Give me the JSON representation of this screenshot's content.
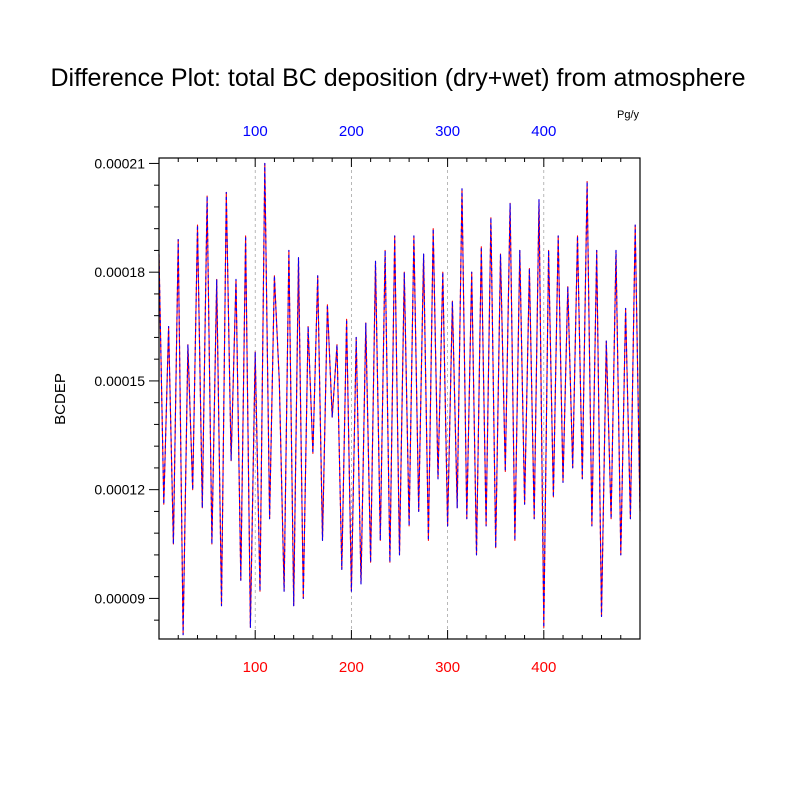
{
  "chart_data": {
    "type": "line",
    "title": "Difference Plot: total BC deposition (dry+wet) from atmosphere",
    "ylabel": "BCDEP",
    "units": "Pg/y",
    "xlim": [
      0,
      500
    ],
    "ylim": [
      7.88e-05,
      0.0002115
    ],
    "grid": "vertical dashed at top-axis ticks",
    "bottom_axis": {
      "ticks": [
        100,
        200,
        300,
        400
      ],
      "labels": [
        "100",
        "200",
        "300",
        "400"
      ],
      "color": "#ff0000"
    },
    "top_axis": {
      "ticks": [
        100,
        200,
        300,
        400
      ],
      "labels": [
        "100",
        "200",
        "300",
        "400"
      ],
      "color": "#0000ff"
    },
    "y_axis": {
      "ticks": [
        9e-05,
        0.00012,
        0.00015,
        0.00018,
        0.00021
      ],
      "labels": [
        "0.00009",
        "0.00012",
        "0.00015",
        "0.00018",
        "0.00021"
      ]
    },
    "series": [
      {
        "color": "#ff0000",
        "style": "solid",
        "x": [
          0,
          5,
          10,
          15,
          20,
          25,
          30,
          35,
          40,
          45,
          50,
          55,
          60,
          65,
          70,
          75,
          80,
          85,
          90,
          95,
          100,
          105,
          110,
          115,
          120,
          125,
          130,
          135,
          140,
          145,
          150,
          155,
          160,
          165,
          170,
          175,
          180,
          185,
          190,
          195,
          200,
          205,
          210,
          215,
          220,
          225,
          230,
          235,
          240,
          245,
          250,
          255,
          260,
          265,
          270,
          275,
          280,
          285,
          290,
          295,
          300,
          305,
          310,
          315,
          320,
          325,
          330,
          335,
          340,
          345,
          350,
          355,
          360,
          365,
          370,
          375,
          380,
          385,
          390,
          395,
          400,
          405,
          410,
          415,
          420,
          425,
          430,
          435,
          440,
          445,
          450,
          455,
          460,
          465,
          470,
          475,
          480,
          485,
          490,
          495,
          500
        ],
        "values": [
          0.000185,
          0.000116,
          0.000165,
          0.000105,
          0.000189,
          8e-05,
          0.00016,
          0.00012,
          0.000193,
          0.000115,
          0.000201,
          0.000105,
          0.000178,
          8.8e-05,
          0.000202,
          0.000128,
          0.000178,
          9.5e-05,
          0.00019,
          8.2e-05,
          0.000158,
          9.2e-05,
          0.00021,
          0.000112,
          0.000179,
          0.00015,
          9.2e-05,
          0.000186,
          8.8e-05,
          0.000184,
          9e-05,
          0.000165,
          0.00013,
          0.000179,
          0.000106,
          0.000171,
          0.00014,
          0.00016,
          9.8e-05,
          0.000167,
          9.2e-05,
          0.000162,
          9.4e-05,
          0.000166,
          0.0001,
          0.000183,
          0.000106,
          0.000186,
          0.0001,
          0.00019,
          0.000102,
          0.00018,
          0.00011,
          0.00019,
          0.000114,
          0.000185,
          0.000106,
          0.000192,
          0.000123,
          0.00018,
          0.00011,
          0.000172,
          0.000115,
          0.000203,
          0.000112,
          0.00018,
          0.000102,
          0.000187,
          0.00011,
          0.000195,
          0.000104,
          0.000185,
          0.000125,
          0.000199,
          0.000106,
          0.000186,
          0.000116,
          0.000181,
          0.000112,
          0.0002,
          8.2e-05,
          0.000186,
          0.000118,
          0.00019,
          0.000122,
          0.000176,
          0.000126,
          0.00019,
          0.000123,
          0.000205,
          0.00011,
          0.000186,
          8.5e-05,
          0.000161,
          0.000112,
          0.000186,
          0.000102,
          0.00017,
          0.000112,
          0.000193,
          0.000114
        ]
      },
      {
        "color": "#0000ff",
        "style": "dashed",
        "x": [
          0,
          5,
          10,
          15,
          20,
          25,
          30,
          35,
          40,
          45,
          50,
          55,
          60,
          65,
          70,
          75,
          80,
          85,
          90,
          95,
          100,
          105,
          110,
          115,
          120,
          125,
          130,
          135,
          140,
          145,
          150,
          155,
          160,
          165,
          170,
          175,
          180,
          185,
          190,
          195,
          200,
          205,
          210,
          215,
          220,
          225,
          230,
          235,
          240,
          245,
          250,
          255,
          260,
          265,
          270,
          275,
          280,
          285,
          290,
          295,
          300,
          305,
          310,
          315,
          320,
          325,
          330,
          335,
          340,
          345,
          350,
          355,
          360,
          365,
          370,
          375,
          380,
          385,
          390,
          395,
          400,
          405,
          410,
          415,
          420,
          425,
          430,
          435,
          440,
          445,
          450,
          455,
          460,
          465,
          470,
          475,
          480,
          485,
          490,
          495,
          500
        ],
        "values": [
          0.000185,
          0.000116,
          0.000165,
          0.000105,
          0.000189,
          8e-05,
          0.00016,
          0.00012,
          0.000193,
          0.000115,
          0.000201,
          0.000105,
          0.000178,
          8.8e-05,
          0.000202,
          0.000128,
          0.000178,
          9.5e-05,
          0.00019,
          8.2e-05,
          0.000158,
          9.2e-05,
          0.00021,
          0.000112,
          0.000179,
          0.00015,
          9.2e-05,
          0.000186,
          8.8e-05,
          0.000184,
          9e-05,
          0.000165,
          0.00013,
          0.000179,
          0.000106,
          0.000171,
          0.00014,
          0.00016,
          9.8e-05,
          0.000167,
          9.2e-05,
          0.000162,
          9.4e-05,
          0.000166,
          0.0001,
          0.000183,
          0.000106,
          0.000186,
          0.0001,
          0.00019,
          0.000102,
          0.00018,
          0.00011,
          0.00019,
          0.000114,
          0.000185,
          0.000106,
          0.000192,
          0.000123,
          0.00018,
          0.00011,
          0.000172,
          0.000115,
          0.000203,
          0.000112,
          0.00018,
          0.000102,
          0.000187,
          0.00011,
          0.000195,
          0.000104,
          0.000185,
          0.000125,
          0.000199,
          0.000106,
          0.000186,
          0.000116,
          0.000181,
          0.000112,
          0.0002,
          8.2e-05,
          0.000186,
          0.000118,
          0.00019,
          0.000122,
          0.000176,
          0.000126,
          0.00019,
          0.000123,
          0.000205,
          0.00011,
          0.000186,
          8.5e-05,
          0.000161,
          0.000112,
          0.000186,
          0.000102,
          0.00017,
          0.000112,
          0.000193,
          0.000114
        ]
      }
    ]
  }
}
